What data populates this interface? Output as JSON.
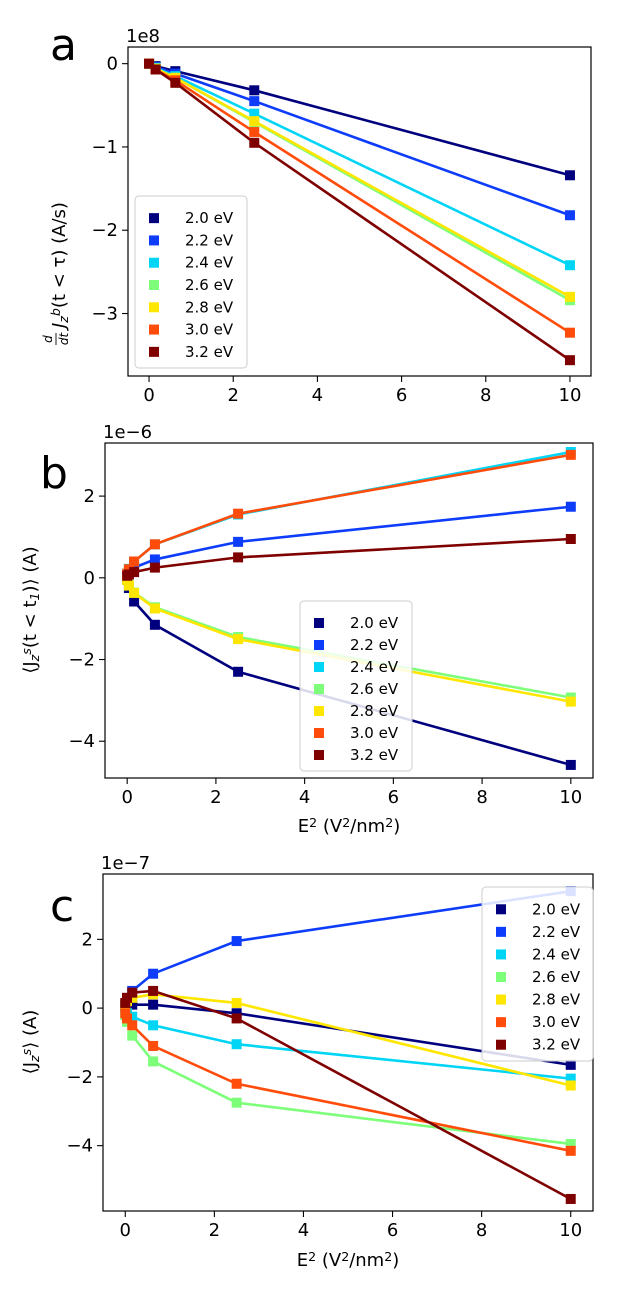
{
  "colors": {
    "2.0 eV": "#00007f",
    "2.2 eV": "#0d3dfa",
    "2.4 eV": "#00d5f5",
    "2.6 eV": "#7dff7a",
    "2.8 eV": "#ffe600",
    "3.0 eV": "#ff4c0a",
    "3.2 eV": "#7f0000"
  },
  "chart_data": [
    {
      "type": "line",
      "panel": "a",
      "title": "",
      "xlabel": "",
      "ylabel": "d/dt J_z^b(t < τ) (A/s)",
      "ylabel_pieces": [
        "d",
        "dt",
        "J",
        "z",
        "b",
        "(t < τ) (A/s)"
      ],
      "exponent_label": "1e8",
      "xlim": [
        -0.5,
        10.5
      ],
      "ylim": [
        -3.75,
        0.2
      ],
      "xticks": [
        0,
        2,
        4,
        6,
        8,
        10
      ],
      "yticks": [
        0,
        -1,
        -2,
        -3
      ],
      "xtick_labels": [
        "0",
        "2",
        "4",
        "6",
        "8",
        "10"
      ],
      "ytick_labels": [
        "0",
        "−1",
        "−2",
        "−3"
      ],
      "legend_position": "center-left",
      "x": [
        0,
        0.156,
        0.625,
        2.5,
        10
      ],
      "series": [
        {
          "name": "2.0 eV",
          "values": [
            0,
            -0.03,
            -0.09,
            -0.32,
            -1.34
          ]
        },
        {
          "name": "2.2 eV",
          "values": [
            0,
            -0.04,
            -0.12,
            -0.45,
            -1.82
          ]
        },
        {
          "name": "2.4 eV",
          "values": [
            0,
            -0.05,
            -0.15,
            -0.6,
            -2.42
          ]
        },
        {
          "name": "2.6 eV",
          "values": [
            0,
            -0.06,
            -0.17,
            -0.7,
            -2.84
          ]
        },
        {
          "name": "2.8 eV",
          "values": [
            0,
            -0.06,
            -0.17,
            -0.69,
            -2.8
          ]
        },
        {
          "name": "3.0 eV",
          "values": [
            0,
            -0.07,
            -0.2,
            -0.82,
            -3.23
          ]
        },
        {
          "name": "3.2 eV",
          "values": [
            0,
            -0.07,
            -0.23,
            -0.95,
            -3.56
          ]
        }
      ]
    },
    {
      "type": "line",
      "panel": "b",
      "title": "",
      "xlabel": "E² (V²/nm²)",
      "ylabel": "⟨J_z^s(t < t_1)⟩ (A)",
      "ylabel_pieces": [
        "⟨J",
        "z",
        "s",
        "(t < t",
        "1",
        ")⟩ (A)"
      ],
      "xlabel_pieces": [
        "E",
        "2",
        " (V",
        "2",
        "/nm",
        "2",
        ")"
      ],
      "exponent_label": "1e−6",
      "xlim": [
        -0.5,
        10.5
      ],
      "ylim": [
        -4.9,
        3.3
      ],
      "xticks": [
        0,
        2,
        4,
        6,
        8,
        10
      ],
      "yticks": [
        2,
        0,
        -2,
        -4
      ],
      "xtick_labels": [
        "0",
        "2",
        "4",
        "6",
        "8",
        "10"
      ],
      "ytick_labels": [
        "2",
        "0",
        "−2",
        "−4"
      ],
      "legend_position": "lower-center",
      "x": [
        0,
        0.039,
        0.156,
        0.625,
        2.5,
        10
      ],
      "series": [
        {
          "name": "2.0 eV",
          "values": [
            -0.05,
            -0.25,
            -0.58,
            -1.15,
            -2.3,
            -4.58
          ]
        },
        {
          "name": "2.2 eV",
          "values": [
            0.05,
            0.12,
            0.25,
            0.45,
            0.88,
            1.74
          ]
        },
        {
          "name": "2.4 eV",
          "values": [
            0.1,
            0.22,
            0.4,
            0.82,
            1.55,
            3.08
          ]
        },
        {
          "name": "2.6 eV",
          "values": [
            -0.05,
            -0.18,
            -0.36,
            -0.72,
            -1.45,
            -2.93
          ]
        },
        {
          "name": "2.8 eV",
          "values": [
            -0.05,
            -0.19,
            -0.37,
            -0.75,
            -1.5,
            -3.03
          ]
        },
        {
          "name": "3.0 eV",
          "values": [
            0.1,
            0.21,
            0.4,
            0.82,
            1.57,
            3.01
          ]
        },
        {
          "name": "3.2 eV",
          "values": [
            0.05,
            0.08,
            0.14,
            0.25,
            0.5,
            0.95
          ]
        }
      ]
    },
    {
      "type": "line",
      "panel": "c",
      "title": "",
      "xlabel": "E² (V²/nm²)",
      "ylabel": "⟨J_z^s⟩ (A)",
      "ylabel_pieces": [
        "⟨J",
        "z",
        "s",
        "⟩ (A)"
      ],
      "xlabel_pieces": [
        "E",
        "2",
        " (V",
        "2",
        "/nm",
        "2",
        ")"
      ],
      "exponent_label": "1e−7",
      "xlim": [
        -0.5,
        10.5
      ],
      "ylim": [
        -5.9,
        3.9
      ],
      "xticks": [
        0,
        2,
        4,
        6,
        8,
        10
      ],
      "yticks": [
        2,
        0,
        -2,
        -4
      ],
      "xtick_labels": [
        "0",
        "2",
        "4",
        "6",
        "8",
        "10"
      ],
      "ytick_labels": [
        "2",
        "0",
        "−2",
        "−4"
      ],
      "legend_position": "upper-right",
      "x": [
        0,
        0.039,
        0.156,
        0.625,
        2.5,
        10
      ],
      "series": [
        {
          "name": "2.0 eV",
          "values": [
            0.05,
            0.05,
            0.1,
            0.1,
            -0.15,
            -1.65
          ]
        },
        {
          "name": "2.2 eV",
          "values": [
            0.1,
            0.25,
            0.5,
            1.0,
            1.95,
            3.4
          ]
        },
        {
          "name": "2.4 eV",
          "values": [
            -0.05,
            -0.15,
            -0.25,
            -0.5,
            -1.05,
            -2.05
          ]
        },
        {
          "name": "2.6 eV",
          "values": [
            -0.2,
            -0.4,
            -0.8,
            -1.55,
            -2.75,
            -3.95
          ]
        },
        {
          "name": "2.8 eV",
          "values": [
            0.1,
            0.2,
            0.3,
            0.4,
            0.15,
            -2.25
          ]
        },
        {
          "name": "3.0 eV",
          "values": [
            -0.15,
            -0.3,
            -0.5,
            -1.1,
            -2.2,
            -4.15
          ]
        },
        {
          "name": "3.2 eV",
          "values": [
            0.15,
            0.3,
            0.45,
            0.5,
            -0.3,
            -5.55
          ]
        }
      ]
    }
  ]
}
